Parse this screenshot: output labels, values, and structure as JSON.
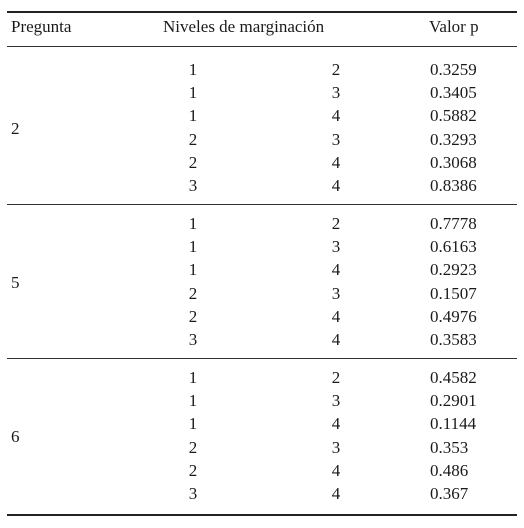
{
  "table": {
    "headers": {
      "pregunta": "Pregunta",
      "niveles": "Niveles de marginación",
      "valor_p": "Valor p"
    },
    "groups": [
      {
        "pregunta": "2",
        "rows": [
          {
            "a": "1",
            "b": "2",
            "p": "0.3259"
          },
          {
            "a": "1",
            "b": "3",
            "p": "0.3405"
          },
          {
            "a": "1",
            "b": "4",
            "p": "0.5882"
          },
          {
            "a": "2",
            "b": "3",
            "p": "0.3293"
          },
          {
            "a": "2",
            "b": "4",
            "p": "0.3068"
          },
          {
            "a": "3",
            "b": "4",
            "p": "0.8386"
          }
        ]
      },
      {
        "pregunta": "5",
        "rows": [
          {
            "a": "1",
            "b": "2",
            "p": "0.7778"
          },
          {
            "a": "1",
            "b": "3",
            "p": "0.6163"
          },
          {
            "a": "1",
            "b": "4",
            "p": "0.2923"
          },
          {
            "a": "2",
            "b": "3",
            "p": "0.1507"
          },
          {
            "a": "2",
            "b": "4",
            "p": "0.4976"
          },
          {
            "a": "3",
            "b": "4",
            "p": "0.3583"
          }
        ]
      },
      {
        "pregunta": "6",
        "rows": [
          {
            "a": "1",
            "b": "2",
            "p": "0.4582"
          },
          {
            "a": "1",
            "b": "3",
            "p": "0.2901"
          },
          {
            "a": "1",
            "b": "4",
            "p": "0.1144"
          },
          {
            "a": "2",
            "b": "3",
            "p": "0.353"
          },
          {
            "a": "2",
            "b": "4",
            "p": "0.486"
          },
          {
            "a": "3",
            "b": "4",
            "p": "0.367"
          }
        ]
      }
    ]
  }
}
